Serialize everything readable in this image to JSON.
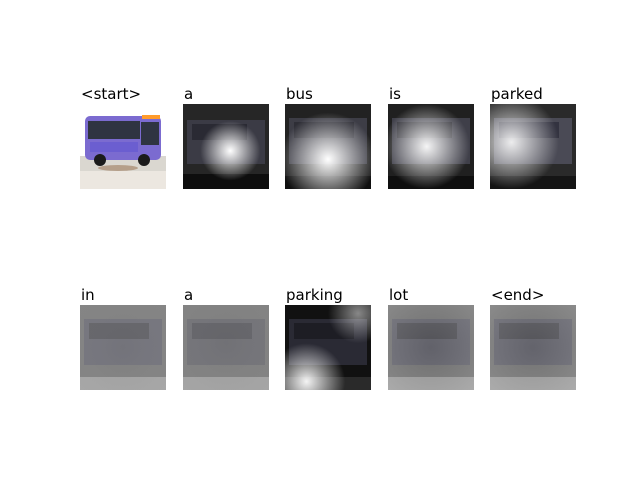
{
  "figure": {
    "rows": [
      {
        "cells": [
          {
            "word": "<start>",
            "kind": "original"
          },
          {
            "word": "a",
            "kind": "attention",
            "focus": "center"
          },
          {
            "word": "bus",
            "kind": "attention",
            "focus": "lower-middle"
          },
          {
            "word": "is",
            "kind": "attention",
            "focus": "middle"
          },
          {
            "word": "parked",
            "kind": "attention",
            "focus": "left"
          }
        ]
      },
      {
        "cells": [
          {
            "word": "in",
            "kind": "attention",
            "focus": "diffuse"
          },
          {
            "word": "a",
            "kind": "attention",
            "focus": "diffuse"
          },
          {
            "word": "parking",
            "kind": "attention",
            "focus": "bottom-left"
          },
          {
            "word": "lot",
            "kind": "attention",
            "focus": "diffuse"
          },
          {
            "word": "<end>",
            "kind": "attention",
            "focus": "diffuse"
          }
        ]
      }
    ],
    "colors": {
      "bus_body": "#7b6bd0",
      "bus_window": "#2b3345",
      "ground": "#d9d6d0",
      "background": "#ffffff"
    }
  }
}
